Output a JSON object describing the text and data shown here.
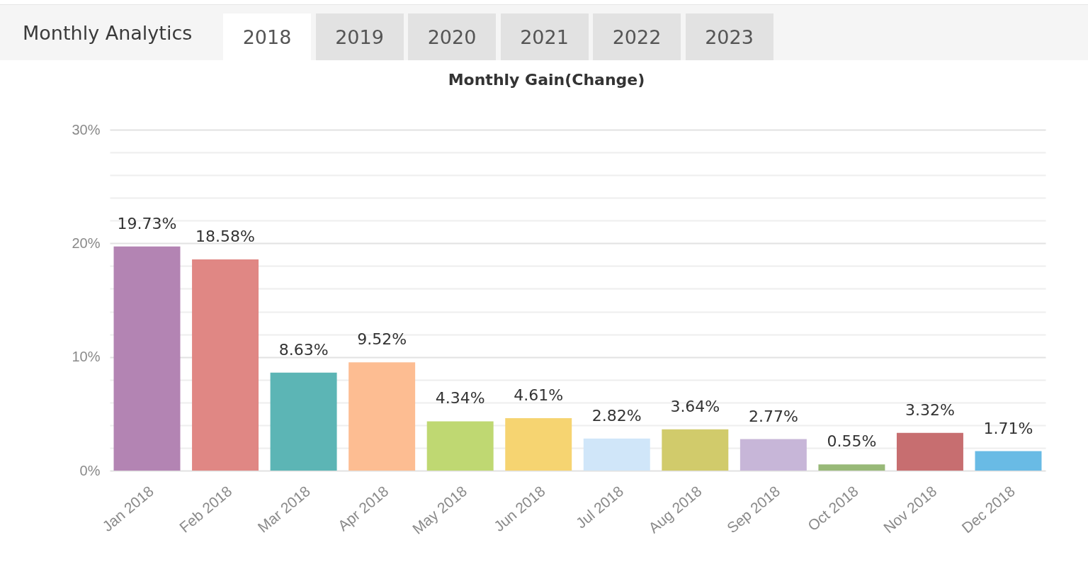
{
  "chart_data": {
    "type": "bar",
    "title": "Monthly Gain(Change)",
    "annotations": [
      "Monthly Analytics",
      "2018",
      "2019",
      "2020",
      "2021",
      "2022",
      "2023"
    ],
    "categories": [
      "Jan 2018",
      "Feb 2018",
      "Mar 2018",
      "Apr 2018",
      "May 2018",
      "Jun 2018",
      "Jul 2018",
      "Aug 2018",
      "Sep 2018",
      "Oct 2018",
      "Nov 2018",
      "Dec 2018"
    ],
    "values": [
      19.73,
      18.58,
      8.63,
      9.52,
      4.34,
      4.61,
      2.82,
      3.64,
      2.77,
      0.55,
      3.32,
      1.71
    ],
    "colors": [
      "#b384b3",
      "#e08784",
      "#5cb5b5",
      "#fdbd92",
      "#bfd872",
      "#f6d471",
      "#d0e6f9",
      "#d1cb6b",
      "#c7b6d8",
      "#98b978",
      "#c76e70",
      "#69bbe5"
    ],
    "value_labels": [
      "19.73%",
      "18.58%",
      "8.63%",
      "9.52%",
      "4.34%",
      "4.61%",
      "2.82%",
      "3.64%",
      "2.77%",
      "0.55%",
      "3.32%",
      "1.71%"
    ],
    "ylim": [
      0,
      30
    ],
    "yticks": [
      {
        "value": 0,
        "label": "0%"
      },
      {
        "value": 2,
        "label": null
      },
      {
        "value": 4,
        "label": null
      },
      {
        "value": 6,
        "label": null
      },
      {
        "value": 8,
        "label": null
      },
      {
        "value": 10,
        "label": "10%"
      },
      {
        "value": 12,
        "label": null
      },
      {
        "value": 14,
        "label": null
      },
      {
        "value": 16,
        "label": null
      },
      {
        "value": 18,
        "label": null
      },
      {
        "value": 20,
        "label": "20%"
      },
      {
        "value": 22,
        "label": null
      },
      {
        "value": 24,
        "label": null
      },
      {
        "value": 26,
        "label": null
      },
      {
        "value": 28,
        "label": null
      },
      {
        "value": 30,
        "label": "30%"
      }
    ],
    "grid": "y"
  }
}
